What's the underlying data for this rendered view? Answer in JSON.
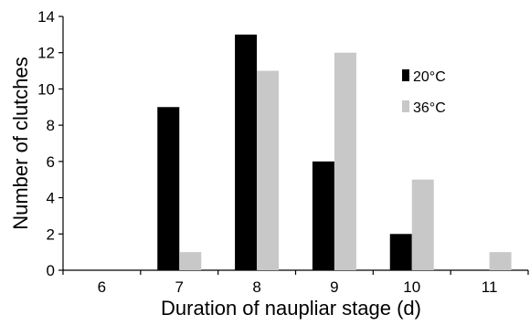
{
  "chart_data": {
    "type": "bar",
    "categories": [
      "6",
      "7",
      "8",
      "9",
      "10",
      "11"
    ],
    "series": [
      {
        "name": "20°C",
        "color": "#000000",
        "values": [
          0,
          9,
          13,
          6,
          2,
          0
        ]
      },
      {
        "name": "36°C",
        "color": "#c8c8c8",
        "values": [
          0,
          1,
          11,
          12,
          5,
          1
        ]
      }
    ],
    "xlabel": "Duration of naupliar stage (d)",
    "ylabel": "Number of clutches",
    "ylim": [
      0,
      14
    ],
    "yticks": [
      "0",
      "2",
      "4",
      "6",
      "8",
      "10",
      "12",
      "14"
    ],
    "grid": false,
    "legend_position": "right"
  }
}
